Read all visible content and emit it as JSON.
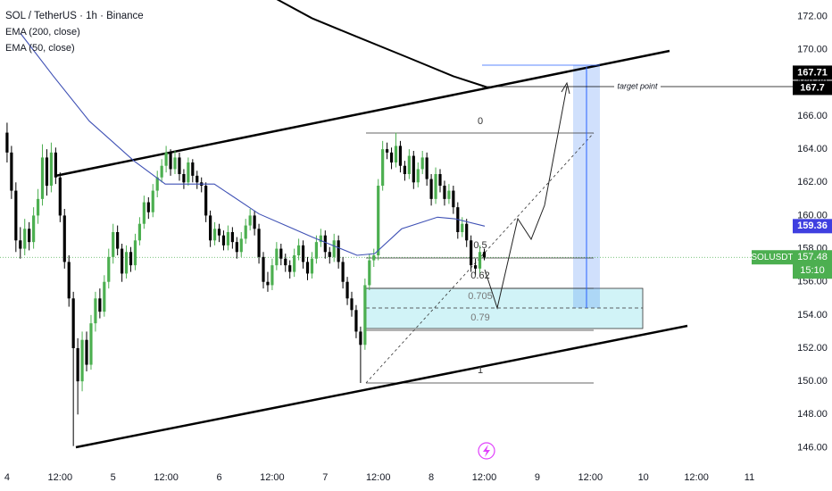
{
  "chart_data": {
    "type": "candlestick",
    "title": "SOL / TetherUS · 1h · Binance",
    "up_color": "#4caf50",
    "down_color": "#000000",
    "xlim": [
      -1.6,
      177.8
    ],
    "ylim": [
      145,
      173
    ],
    "xticks": [
      {
        "value": 0,
        "label": "4"
      },
      {
        "value": 12,
        "label": "12:00"
      },
      {
        "value": 24,
        "label": "5"
      },
      {
        "value": 36,
        "label": "12:00"
      },
      {
        "value": 48,
        "label": "6"
      },
      {
        "value": 60,
        "label": "12:00"
      },
      {
        "value": 72,
        "label": "7"
      },
      {
        "value": 84,
        "label": "12:00"
      },
      {
        "value": 96,
        "label": "8"
      },
      {
        "value": 108,
        "label": "12:00"
      },
      {
        "value": 120,
        "label": "9"
      },
      {
        "value": 132,
        "label": "12:00"
      },
      {
        "value": 144,
        "label": "10"
      },
      {
        "value": 156,
        "label": "12:00"
      },
      {
        "value": 168,
        "label": "11"
      }
    ],
    "yticks": [
      {
        "value": 146,
        "label": "146.00"
      },
      {
        "value": 148,
        "label": "148.00"
      },
      {
        "value": 150,
        "label": "150.00"
      },
      {
        "value": 152,
        "label": "152.00"
      },
      {
        "value": 154,
        "label": "154.00"
      },
      {
        "value": 156,
        "label": "156.00"
      },
      {
        "value": 158,
        "label": "158.00"
      },
      {
        "value": 160,
        "label": "160.00"
      },
      {
        "value": 162,
        "label": "162.00"
      },
      {
        "value": 164,
        "label": "164.00"
      },
      {
        "value": 166,
        "label": "166.00"
      },
      {
        "value": 168,
        "label": "168.00"
      },
      {
        "value": 170,
        "label": "170.00"
      },
      {
        "value": 172,
        "label": "172.00"
      }
    ],
    "x": [
      0,
      1,
      2,
      3,
      4,
      5,
      6,
      7,
      8,
      9,
      10,
      11,
      12,
      13,
      14,
      15,
      16,
      17,
      18,
      19,
      20,
      21,
      22,
      23,
      24,
      25,
      26,
      27,
      28,
      29,
      30,
      31,
      32,
      33,
      34,
      35,
      36,
      37,
      38,
      39,
      40,
      41,
      42,
      43,
      44,
      45,
      46,
      47,
      48,
      49,
      50,
      51,
      52,
      53,
      54,
      55,
      56,
      57,
      58,
      59,
      60,
      61,
      62,
      63,
      64,
      65,
      66,
      67,
      68,
      69,
      70,
      71,
      72,
      73,
      74,
      75,
      76,
      77,
      78,
      79,
      80,
      81,
      82,
      83,
      84,
      85,
      86,
      87,
      88,
      89,
      90,
      91,
      92,
      93,
      94,
      95,
      96,
      97,
      98,
      99,
      100,
      101,
      102,
      103,
      104,
      105,
      106,
      107,
      108
    ],
    "ohlc": [
      [
        165.0,
        165.6,
        163.2,
        163.8
      ],
      [
        163.8,
        164.2,
        161.0,
        161.5
      ],
      [
        161.5,
        162.0,
        157.8,
        158.5
      ],
      [
        158.5,
        159.3,
        157.4,
        158.0
      ],
      [
        158.0,
        159.8,
        157.6,
        159.2
      ],
      [
        159.2,
        159.6,
        157.9,
        158.4
      ],
      [
        158.4,
        160.5,
        158.0,
        160.0
      ],
      [
        160.0,
        161.6,
        159.5,
        161.0
      ],
      [
        161.0,
        164.3,
        160.6,
        163.5
      ],
      [
        163.5,
        164.0,
        161.2,
        161.8
      ],
      [
        161.8,
        164.4,
        161.4,
        163.8
      ],
      [
        163.8,
        164.1,
        161.9,
        162.3
      ],
      [
        162.3,
        162.6,
        159.6,
        160.0
      ],
      [
        160.0,
        160.4,
        156.8,
        157.2
      ],
      [
        157.2,
        157.6,
        154.5,
        155.0
      ],
      [
        155.0,
        155.4,
        146.1,
        152.0
      ],
      [
        152.0,
        152.6,
        148.0,
        150.0
      ],
      [
        150.0,
        153.0,
        149.4,
        152.5
      ],
      [
        152.5,
        153.0,
        150.6,
        151.0
      ],
      [
        151.0,
        154.0,
        150.7,
        153.5
      ],
      [
        153.5,
        155.4,
        153.0,
        155.0
      ],
      [
        155.0,
        155.6,
        153.8,
        154.2
      ],
      [
        154.2,
        156.4,
        153.9,
        156.0
      ],
      [
        156.0,
        158.0,
        155.6,
        157.5
      ],
      [
        157.5,
        159.5,
        157.1,
        159.0
      ],
      [
        159.0,
        159.4,
        157.6,
        158.0
      ],
      [
        158.0,
        158.3,
        156.0,
        156.5
      ],
      [
        156.5,
        158.2,
        156.2,
        157.8
      ],
      [
        157.8,
        158.1,
        156.6,
        157.0
      ],
      [
        157.0,
        158.9,
        156.7,
        158.5
      ],
      [
        158.5,
        159.9,
        158.2,
        159.5
      ],
      [
        159.5,
        161.2,
        159.2,
        160.8
      ],
      [
        160.8,
        161.1,
        159.8,
        160.2
      ],
      [
        160.2,
        161.9,
        159.9,
        161.5
      ],
      [
        161.5,
        162.7,
        161.1,
        162.3
      ],
      [
        162.3,
        163.4,
        162.0,
        163.0
      ],
      [
        163.0,
        164.2,
        162.6,
        163.8
      ],
      [
        163.8,
        164.0,
        162.4,
        162.8
      ],
      [
        162.8,
        163.9,
        162.5,
        163.5
      ],
      [
        163.5,
        163.8,
        162.1,
        162.5
      ],
      [
        162.5,
        162.8,
        161.6,
        162.0
      ],
      [
        162.0,
        163.5,
        161.8,
        163.2
      ],
      [
        163.2,
        163.4,
        162.0,
        162.4
      ],
      [
        162.4,
        162.7,
        161.6,
        162.0
      ],
      [
        162.0,
        162.3,
        161.4,
        161.8
      ],
      [
        161.8,
        162.0,
        159.6,
        160.0
      ],
      [
        160.0,
        160.3,
        158.1,
        158.5
      ],
      [
        158.5,
        159.6,
        158.2,
        159.2
      ],
      [
        159.2,
        159.5,
        158.4,
        158.8
      ],
      [
        158.8,
        159.1,
        157.9,
        158.2
      ],
      [
        158.2,
        159.4,
        157.9,
        159.0
      ],
      [
        159.0,
        159.3,
        158.0,
        158.4
      ],
      [
        158.4,
        158.7,
        157.4,
        157.8
      ],
      [
        157.8,
        159.0,
        157.5,
        158.6
      ],
      [
        158.6,
        159.8,
        158.3,
        159.4
      ],
      [
        159.4,
        160.4,
        159.1,
        160.0
      ],
      [
        160.0,
        160.3,
        158.8,
        159.2
      ],
      [
        159.2,
        159.5,
        157.1,
        157.5
      ],
      [
        157.5,
        157.8,
        155.6,
        156.0
      ],
      [
        156.0,
        156.6,
        155.4,
        155.8
      ],
      [
        155.8,
        157.4,
        155.5,
        157.0
      ],
      [
        157.0,
        158.4,
        156.7,
        158.0
      ],
      [
        158.0,
        158.3,
        157.0,
        157.4
      ],
      [
        157.4,
        157.7,
        156.6,
        157.0
      ],
      [
        157.0,
        157.3,
        156.2,
        156.6
      ],
      [
        156.6,
        158.0,
        156.3,
        157.6
      ],
      [
        157.6,
        158.6,
        157.3,
        158.2
      ],
      [
        158.2,
        158.5,
        156.8,
        157.2
      ],
      [
        157.2,
        157.5,
        156.1,
        156.5
      ],
      [
        156.5,
        157.8,
        156.2,
        157.4
      ],
      [
        157.4,
        158.8,
        157.1,
        158.4
      ],
      [
        158.4,
        159.2,
        158.1,
        158.8
      ],
      [
        158.8,
        159.1,
        157.4,
        157.8
      ],
      [
        157.8,
        158.1,
        157.1,
        157.5
      ],
      [
        157.5,
        158.9,
        157.2,
        158.5
      ],
      [
        158.5,
        158.8,
        156.8,
        157.2
      ],
      [
        157.2,
        157.5,
        155.6,
        156.0
      ],
      [
        156.0,
        156.3,
        154.6,
        155.0
      ],
      [
        155.0,
        155.4,
        153.9,
        154.3
      ],
      [
        154.3,
        154.6,
        152.6,
        153.0
      ],
      [
        153.0,
        153.3,
        149.9,
        152.2
      ],
      [
        152.2,
        156.2,
        151.9,
        155.8
      ],
      [
        155.8,
        157.7,
        155.5,
        157.3
      ],
      [
        157.3,
        158.0,
        156.9,
        157.6
      ],
      [
        157.6,
        162.2,
        157.3,
        161.8
      ],
      [
        161.8,
        164.5,
        161.5,
        164.0
      ],
      [
        164.0,
        164.4,
        163.4,
        163.8
      ],
      [
        163.8,
        164.1,
        162.8,
        163.2
      ],
      [
        163.2,
        165.0,
        162.9,
        164.2
      ],
      [
        164.2,
        164.5,
        162.6,
        163.0
      ],
      [
        163.0,
        163.3,
        162.1,
        162.5
      ],
      [
        162.5,
        164.0,
        162.2,
        163.6
      ],
      [
        163.6,
        163.9,
        161.6,
        162.0
      ],
      [
        162.0,
        163.2,
        161.7,
        162.8
      ],
      [
        162.8,
        163.9,
        162.5,
        163.5
      ],
      [
        163.5,
        163.8,
        161.8,
        162.2
      ],
      [
        162.2,
        162.5,
        160.6,
        161.0
      ],
      [
        161.0,
        162.9,
        160.7,
        162.5
      ],
      [
        162.5,
        162.8,
        161.4,
        161.8
      ],
      [
        161.8,
        162.1,
        160.6,
        161.0
      ],
      [
        161.0,
        161.9,
        160.7,
        161.5
      ],
      [
        161.5,
        161.8,
        160.1,
        160.5
      ],
      [
        160.5,
        160.8,
        158.6,
        159.0
      ],
      [
        159.0,
        159.9,
        158.7,
        159.5
      ],
      [
        159.5,
        159.8,
        158.1,
        158.5
      ],
      [
        158.5,
        158.8,
        156.6,
        157.0
      ],
      [
        157.0,
        157.4,
        156.4,
        156.8
      ],
      [
        156.8,
        158.2,
        156.5,
        157.8
      ],
      [
        157.8,
        158.0,
        157.3,
        157.48
      ]
    ],
    "series": [
      {
        "name": "EMA (200, close)",
        "color": "#000000",
        "x": [
          60,
          69,
          79,
          91,
          101,
          108.5
        ],
        "values": [
          173.2,
          171.9,
          170.8,
          169.5,
          168.4,
          167.75
        ]
      },
      {
        "name": "EMA (50, close)",
        "color": "#3f51b5",
        "x": [
          3,
          10.5,
          18.6,
          28.7,
          35.8,
          46.9,
          57,
          69.1,
          79.2,
          83.2,
          89.3,
          97.4,
          101.4,
          108.1
        ],
        "values": [
          171.0,
          168.4,
          165.7,
          163.3,
          161.9,
          161.9,
          160.1,
          158.7,
          157.6,
          157.7,
          159.2,
          159.9,
          159.8,
          159.36
        ]
      }
    ],
    "price_labels": [
      {
        "value": 167.7,
        "color": "#000000"
      },
      {
        "value": 167.71,
        "color": "#000000"
      },
      {
        "value": 159.36,
        "color": "#3f3fe0"
      }
    ],
    "symbol": "SOLUSDT",
    "last_price": 157.48,
    "countdown": "15:10",
    "last_color": "#4caf50",
    "fib_levels": [
      0,
      0.5,
      0.62,
      0.705,
      0.79,
      1
    ],
    "target_label": "target point"
  }
}
